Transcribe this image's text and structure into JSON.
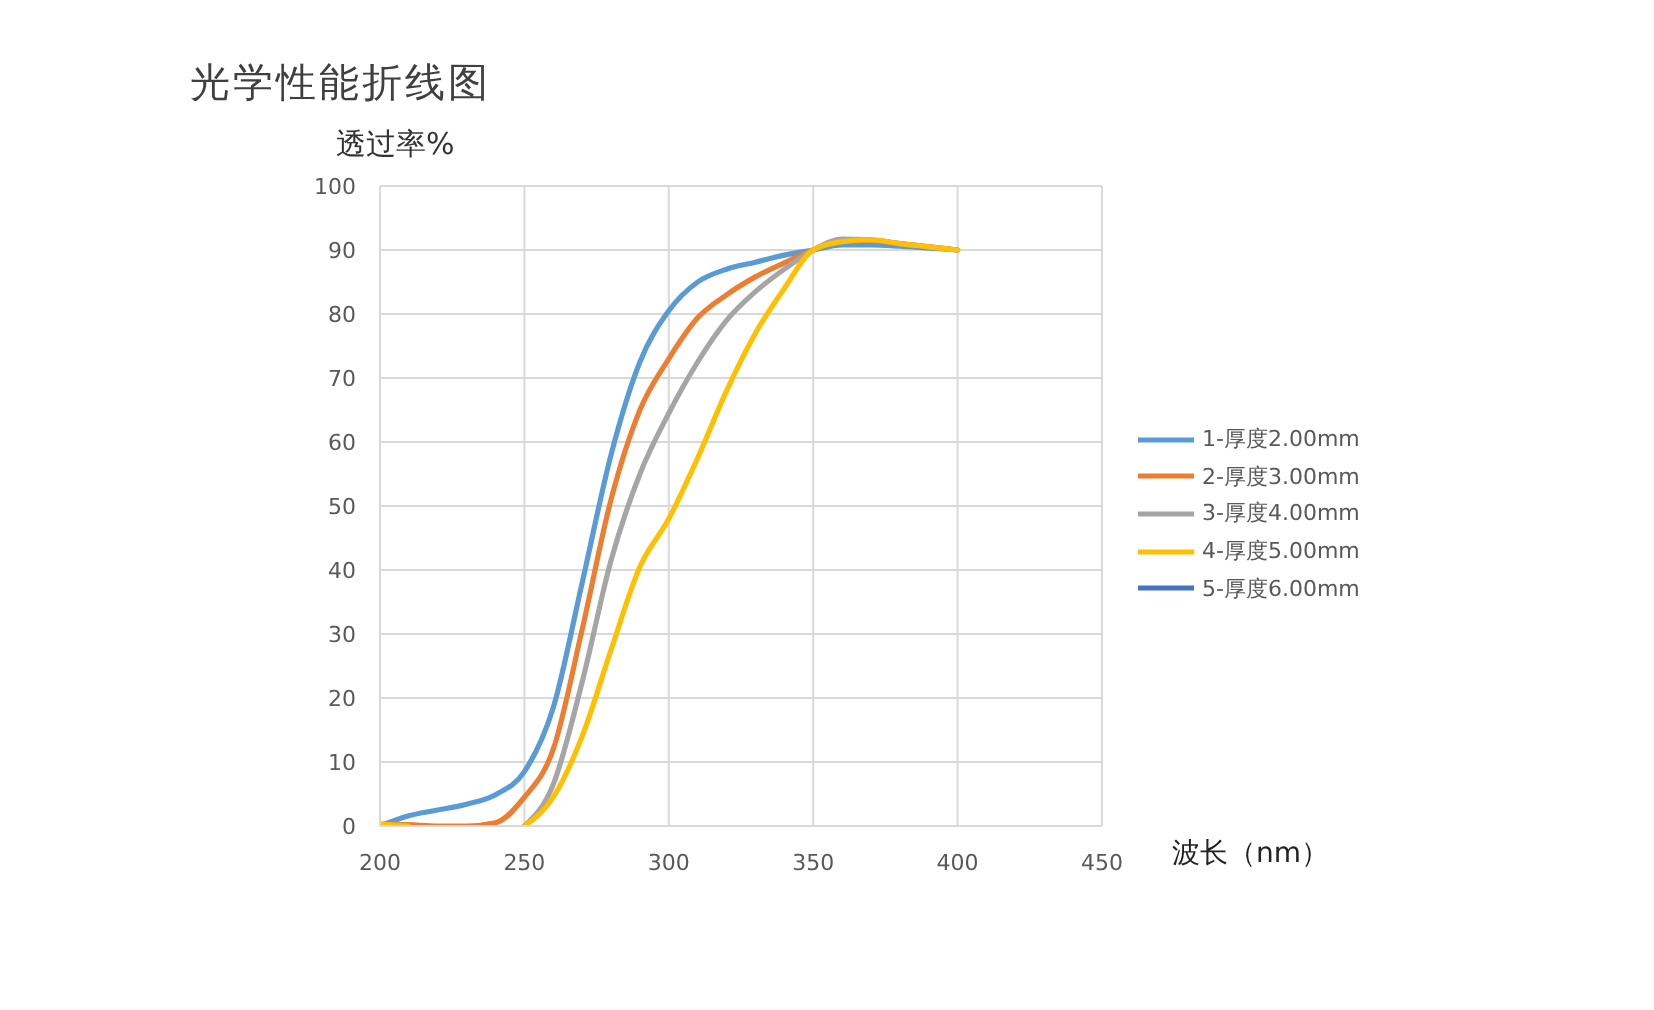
{
  "chart_data": {
    "type": "line",
    "title": "光学性能折线图",
    "xlabel": "波长（nm）",
    "ylabel": "透过率%",
    "x": [
      200,
      210,
      220,
      230,
      240,
      250,
      260,
      270,
      280,
      290,
      300,
      310,
      320,
      330,
      340,
      350,
      360,
      370,
      380,
      390,
      400
    ],
    "xlim": [
      200,
      450
    ],
    "xticks": [
      200,
      250,
      300,
      350,
      400,
      450
    ],
    "ylim": [
      0,
      100
    ],
    "yticks": [
      0,
      10,
      20,
      30,
      40,
      50,
      60,
      70,
      80,
      90,
      100
    ],
    "grid": true,
    "legend": "right",
    "marker": "none",
    "line_style": "solid",
    "series": [
      {
        "name": "1-厚度2.00mm",
        "color": "#5b9bd5",
        "values": [
          0,
          1.6,
          2.5,
          3.4,
          4.9,
          8.5,
          18.5,
          38,
          58,
          72.5,
          80.5,
          85,
          87,
          88.1,
          89.2,
          90,
          90.8,
          90.8,
          90.6,
          90.3,
          90
        ]
      },
      {
        "name": "2-厚度3.00mm",
        "color": "#ed7d31",
        "values": [
          0.3,
          0.2,
          0,
          0,
          0.5,
          4.5,
          12,
          30.7,
          51,
          65,
          73,
          79.4,
          83,
          85.8,
          88,
          90,
          91.4,
          91.5,
          91,
          90.5,
          90
        ]
      },
      {
        "name": "3-厚度4.00mm",
        "color": "#a5a5a5",
        "values": [
          null,
          null,
          null,
          null,
          null,
          0,
          6.5,
          22.5,
          41.5,
          55,
          64.5,
          72.5,
          79,
          83.5,
          87,
          90,
          91.7,
          91.6,
          91,
          90.5,
          90
        ]
      },
      {
        "name": "4-厚度5.00mm",
        "color": "#ffc000",
        "values": [
          0.3,
          0,
          null,
          null,
          null,
          0,
          4.5,
          14,
          27.5,
          40.5,
          48,
          57.5,
          68,
          77,
          84,
          90,
          91.3,
          91.6,
          91,
          90.5,
          90
        ]
      },
      {
        "name": "5-厚度6.00mm",
        "color": "#4472c4",
        "values": [
          null,
          null,
          null,
          null,
          null,
          null,
          null,
          null,
          null,
          null,
          null,
          null,
          null,
          null,
          null,
          null,
          null,
          null,
          null,
          null,
          null
        ]
      }
    ]
  }
}
